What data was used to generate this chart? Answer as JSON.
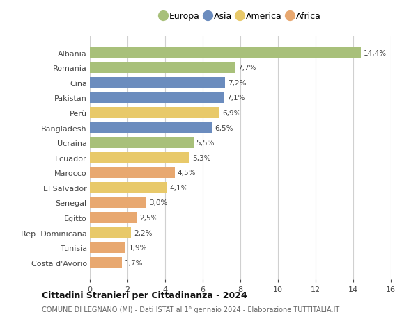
{
  "countries": [
    "Albania",
    "Romania",
    "Cina",
    "Pakistan",
    "Perù",
    "Bangladesh",
    "Ucraina",
    "Ecuador",
    "Marocco",
    "El Salvador",
    "Senegal",
    "Egitto",
    "Rep. Dominicana",
    "Tunisia",
    "Costa d'Avorio"
  ],
  "values": [
    14.4,
    7.7,
    7.2,
    7.1,
    6.9,
    6.5,
    5.5,
    5.3,
    4.5,
    4.1,
    3.0,
    2.5,
    2.2,
    1.9,
    1.7
  ],
  "labels": [
    "14,4%",
    "7,7%",
    "7,2%",
    "7,1%",
    "6,9%",
    "6,5%",
    "5,5%",
    "5,3%",
    "4,5%",
    "4,1%",
    "3,0%",
    "2,5%",
    "2,2%",
    "1,9%",
    "1,7%"
  ],
  "continents": [
    "Europa",
    "Europa",
    "Asia",
    "Asia",
    "America",
    "Asia",
    "Europa",
    "America",
    "Africa",
    "America",
    "Africa",
    "Africa",
    "America",
    "Africa",
    "Africa"
  ],
  "colors": {
    "Europa": "#a8c07a",
    "Asia": "#6b8cbe",
    "America": "#e8c96a",
    "Africa": "#e8a870"
  },
  "legend_order": [
    "Europa",
    "Asia",
    "America",
    "Africa"
  ],
  "xlim": [
    0,
    16
  ],
  "xticks": [
    0,
    2,
    4,
    6,
    8,
    10,
    12,
    14,
    16
  ],
  "title": "Cittadini Stranieri per Cittadinanza - 2024",
  "subtitle": "COMUNE DI LEGNANO (MI) - Dati ISTAT al 1° gennaio 2024 - Elaborazione TUTTITALIA.IT",
  "background_color": "#ffffff",
  "grid_color": "#d0d0d0",
  "bar_height": 0.72
}
